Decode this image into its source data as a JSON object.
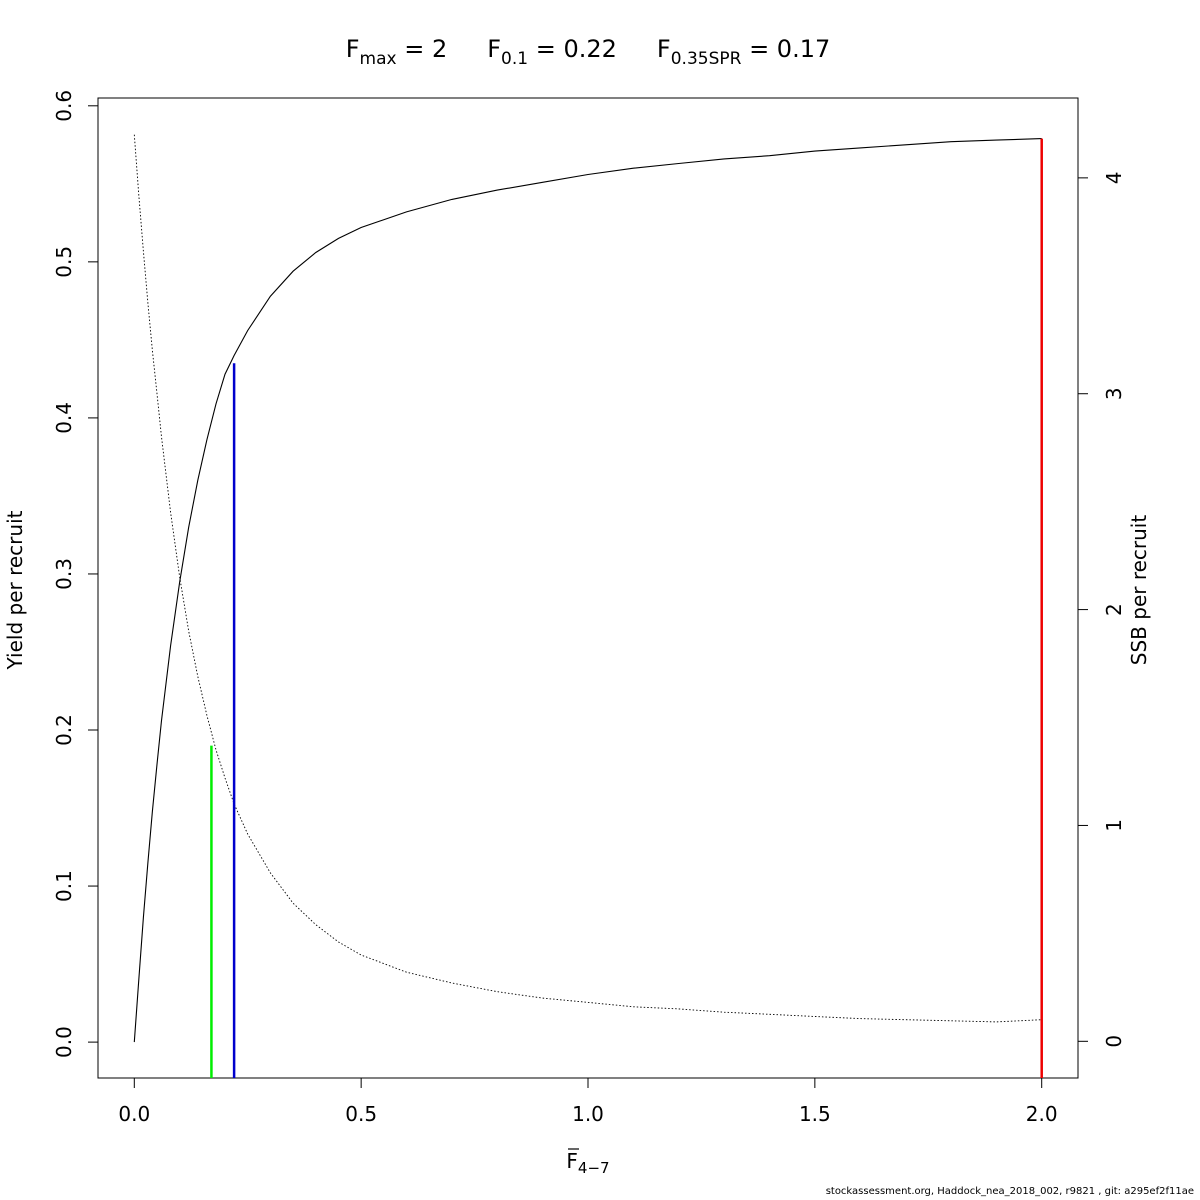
{
  "chart_data": {
    "type": "line",
    "title_parts": [
      {
        "base": "F",
        "sub": "max",
        "rest": " = 2"
      },
      {
        "base": "F",
        "sub": "0.1",
        "rest": " = 0.22"
      },
      {
        "base": "F",
        "sub": "0.35SPR",
        "rest": " = 0.17"
      }
    ],
    "xlabel": {
      "base": "F",
      "sub": "4−7"
    },
    "ylabel": "Yield per recruit",
    "y2label": "SSB per recruit",
    "xlim": [
      -0.08,
      2.08
    ],
    "ylim": [
      -0.023,
      0.605
    ],
    "y2lim": [
      -0.17,
      4.37
    ],
    "xticks": [
      0.0,
      0.5,
      1.0,
      1.5,
      2.0
    ],
    "xtick_labels": [
      "0.0",
      "0.5",
      "1.0",
      "1.5",
      "2.0"
    ],
    "yticks": [
      0.0,
      0.1,
      0.2,
      0.3,
      0.4,
      0.5,
      0.6
    ],
    "ytick_labels": [
      "0.0",
      "0.1",
      "0.2",
      "0.3",
      "0.4",
      "0.5",
      "0.6"
    ],
    "y2ticks": [
      0,
      1,
      2,
      3,
      4
    ],
    "y2tick_labels": [
      "0",
      "1",
      "2",
      "3",
      "4"
    ],
    "grid": false,
    "series": [
      {
        "axis": "left",
        "style": "solid",
        "color": "#000000",
        "x": [
          0,
          0.01,
          0.02,
          0.03,
          0.04,
          0.05,
          0.06,
          0.08,
          0.1,
          0.12,
          0.14,
          0.16,
          0.18,
          0.2,
          0.22,
          0.25,
          0.3,
          0.35,
          0.4,
          0.45,
          0.5,
          0.6,
          0.7,
          0.8,
          0.9,
          1.0,
          1.1,
          1.2,
          1.3,
          1.4,
          1.5,
          1.6,
          1.7,
          1.8,
          1.9,
          2.0
        ],
        "y": [
          0.0,
          0.04,
          0.08,
          0.115,
          0.148,
          0.178,
          0.206,
          0.254,
          0.295,
          0.33,
          0.36,
          0.386,
          0.409,
          0.428,
          0.44,
          0.456,
          0.478,
          0.494,
          0.506,
          0.515,
          0.522,
          0.532,
          0.54,
          0.546,
          0.551,
          0.556,
          0.56,
          0.563,
          0.566,
          0.568,
          0.571,
          0.573,
          0.575,
          0.577,
          0.578,
          0.579
        ]
      },
      {
        "axis": "right",
        "style": "dotted",
        "color": "#000000",
        "x": [
          0,
          0.01,
          0.02,
          0.03,
          0.04,
          0.05,
          0.06,
          0.08,
          0.1,
          0.12,
          0.14,
          0.16,
          0.18,
          0.2,
          0.22,
          0.25,
          0.3,
          0.35,
          0.4,
          0.45,
          0.5,
          0.6,
          0.7,
          0.8,
          0.9,
          1.0,
          1.1,
          1.2,
          1.3,
          1.4,
          1.5,
          1.6,
          1.7,
          1.8,
          1.9,
          2.0
        ],
        "y": [
          4.2,
          3.92,
          3.66,
          3.42,
          3.2,
          3.0,
          2.8,
          2.45,
          2.15,
          1.9,
          1.69,
          1.51,
          1.35,
          1.22,
          1.1,
          0.96,
          0.78,
          0.64,
          0.54,
          0.46,
          0.4,
          0.32,
          0.27,
          0.23,
          0.2,
          0.18,
          0.16,
          0.15,
          0.135,
          0.125,
          0.115,
          0.105,
          0.1,
          0.095,
          0.09,
          0.1
        ]
      }
    ],
    "reference_lines": [
      {
        "x": 0.17,
        "y_top": 0.19,
        "color": "#00ee00"
      },
      {
        "x": 0.22,
        "y_top": 0.435,
        "color": "#0000cc"
      },
      {
        "x": 2.0,
        "y_top": 0.579,
        "color": "#ee0000"
      }
    ]
  },
  "footer": "stockassessment.org, Haddock_nea_2018_002, r9821 , git: a295ef2f11ae"
}
